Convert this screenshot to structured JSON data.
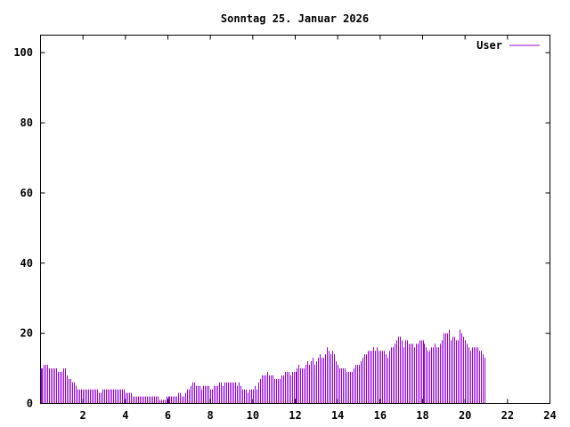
{
  "chart_data": {
    "type": "bar",
    "title": "Sonntag 25. Januar 2026",
    "xlabel": "",
    "ylabel": "",
    "xlim": [
      0,
      24
    ],
    "ylim": [
      0,
      105
    ],
    "xticks": [
      2,
      4,
      6,
      8,
      10,
      12,
      14,
      16,
      18,
      20,
      22,
      24
    ],
    "xtick_labels": [
      "2",
      "4",
      "6",
      "8",
      "10",
      "12",
      "14",
      "16",
      "18",
      "20",
      "22",
      "24"
    ],
    "yticks": [
      0,
      20,
      40,
      60,
      80,
      100
    ],
    "ytick_labels": [
      "0",
      "20",
      "40",
      "60",
      "80",
      "100"
    ],
    "grid": false,
    "legend": "top-right",
    "series": [
      {
        "name": "User",
        "color": "#9400d3",
        "interval_minutes": 5,
        "values": [
          10,
          10,
          11,
          11,
          11,
          10,
          10,
          10,
          10,
          10,
          9,
          9,
          9,
          10,
          10,
          8,
          7,
          7,
          6,
          6,
          5,
          4,
          4,
          4,
          4,
          4,
          4,
          4,
          4,
          4,
          4,
          4,
          4,
          3,
          3,
          4,
          4,
          4,
          4,
          4,
          4,
          4,
          4,
          4,
          4,
          4,
          4,
          4,
          3,
          3,
          3,
          3,
          2,
          2,
          2,
          2,
          2,
          2,
          2,
          2,
          2,
          2,
          2,
          2,
          2,
          2,
          2,
          1,
          1,
          1,
          1,
          2,
          2,
          2,
          2,
          2,
          2,
          2,
          3,
          3,
          2,
          2,
          3,
          4,
          4,
          5,
          6,
          6,
          5,
          5,
          5,
          4,
          5,
          5,
          5,
          5,
          4,
          4,
          5,
          5,
          5,
          6,
          6,
          5,
          6,
          6,
          6,
          6,
          6,
          6,
          6,
          5,
          6,
          5,
          4,
          4,
          4,
          3,
          4,
          4,
          4,
          5,
          4,
          6,
          7,
          8,
          8,
          8,
          9,
          8,
          8,
          8,
          7,
          7,
          7,
          7,
          8,
          8,
          9,
          9,
          9,
          8,
          9,
          9,
          9,
          10,
          11,
          10,
          10,
          10,
          11,
          12,
          11,
          12,
          13,
          11,
          12,
          13,
          14,
          13,
          13,
          14,
          16,
          15,
          14,
          15,
          14,
          12,
          11,
          10,
          10,
          10,
          10,
          9,
          9,
          9,
          9,
          10,
          11,
          11,
          11,
          12,
          13,
          14,
          14,
          15,
          15,
          15,
          16,
          15,
          16,
          15,
          15,
          15,
          15,
          14,
          13,
          15,
          16,
          16,
          17,
          18,
          19,
          19,
          18,
          16,
          18,
          18,
          17,
          17,
          17,
          16,
          17,
          17,
          18,
          18,
          18,
          17,
          16,
          15,
          15,
          16,
          16,
          17,
          16,
          16,
          17,
          18,
          20,
          20,
          20,
          21,
          18,
          19,
          19,
          18,
          18,
          21,
          20,
          19,
          18,
          17,
          16,
          15,
          16,
          16,
          16,
          16,
          15,
          15,
          14,
          13
        ]
      }
    ]
  }
}
